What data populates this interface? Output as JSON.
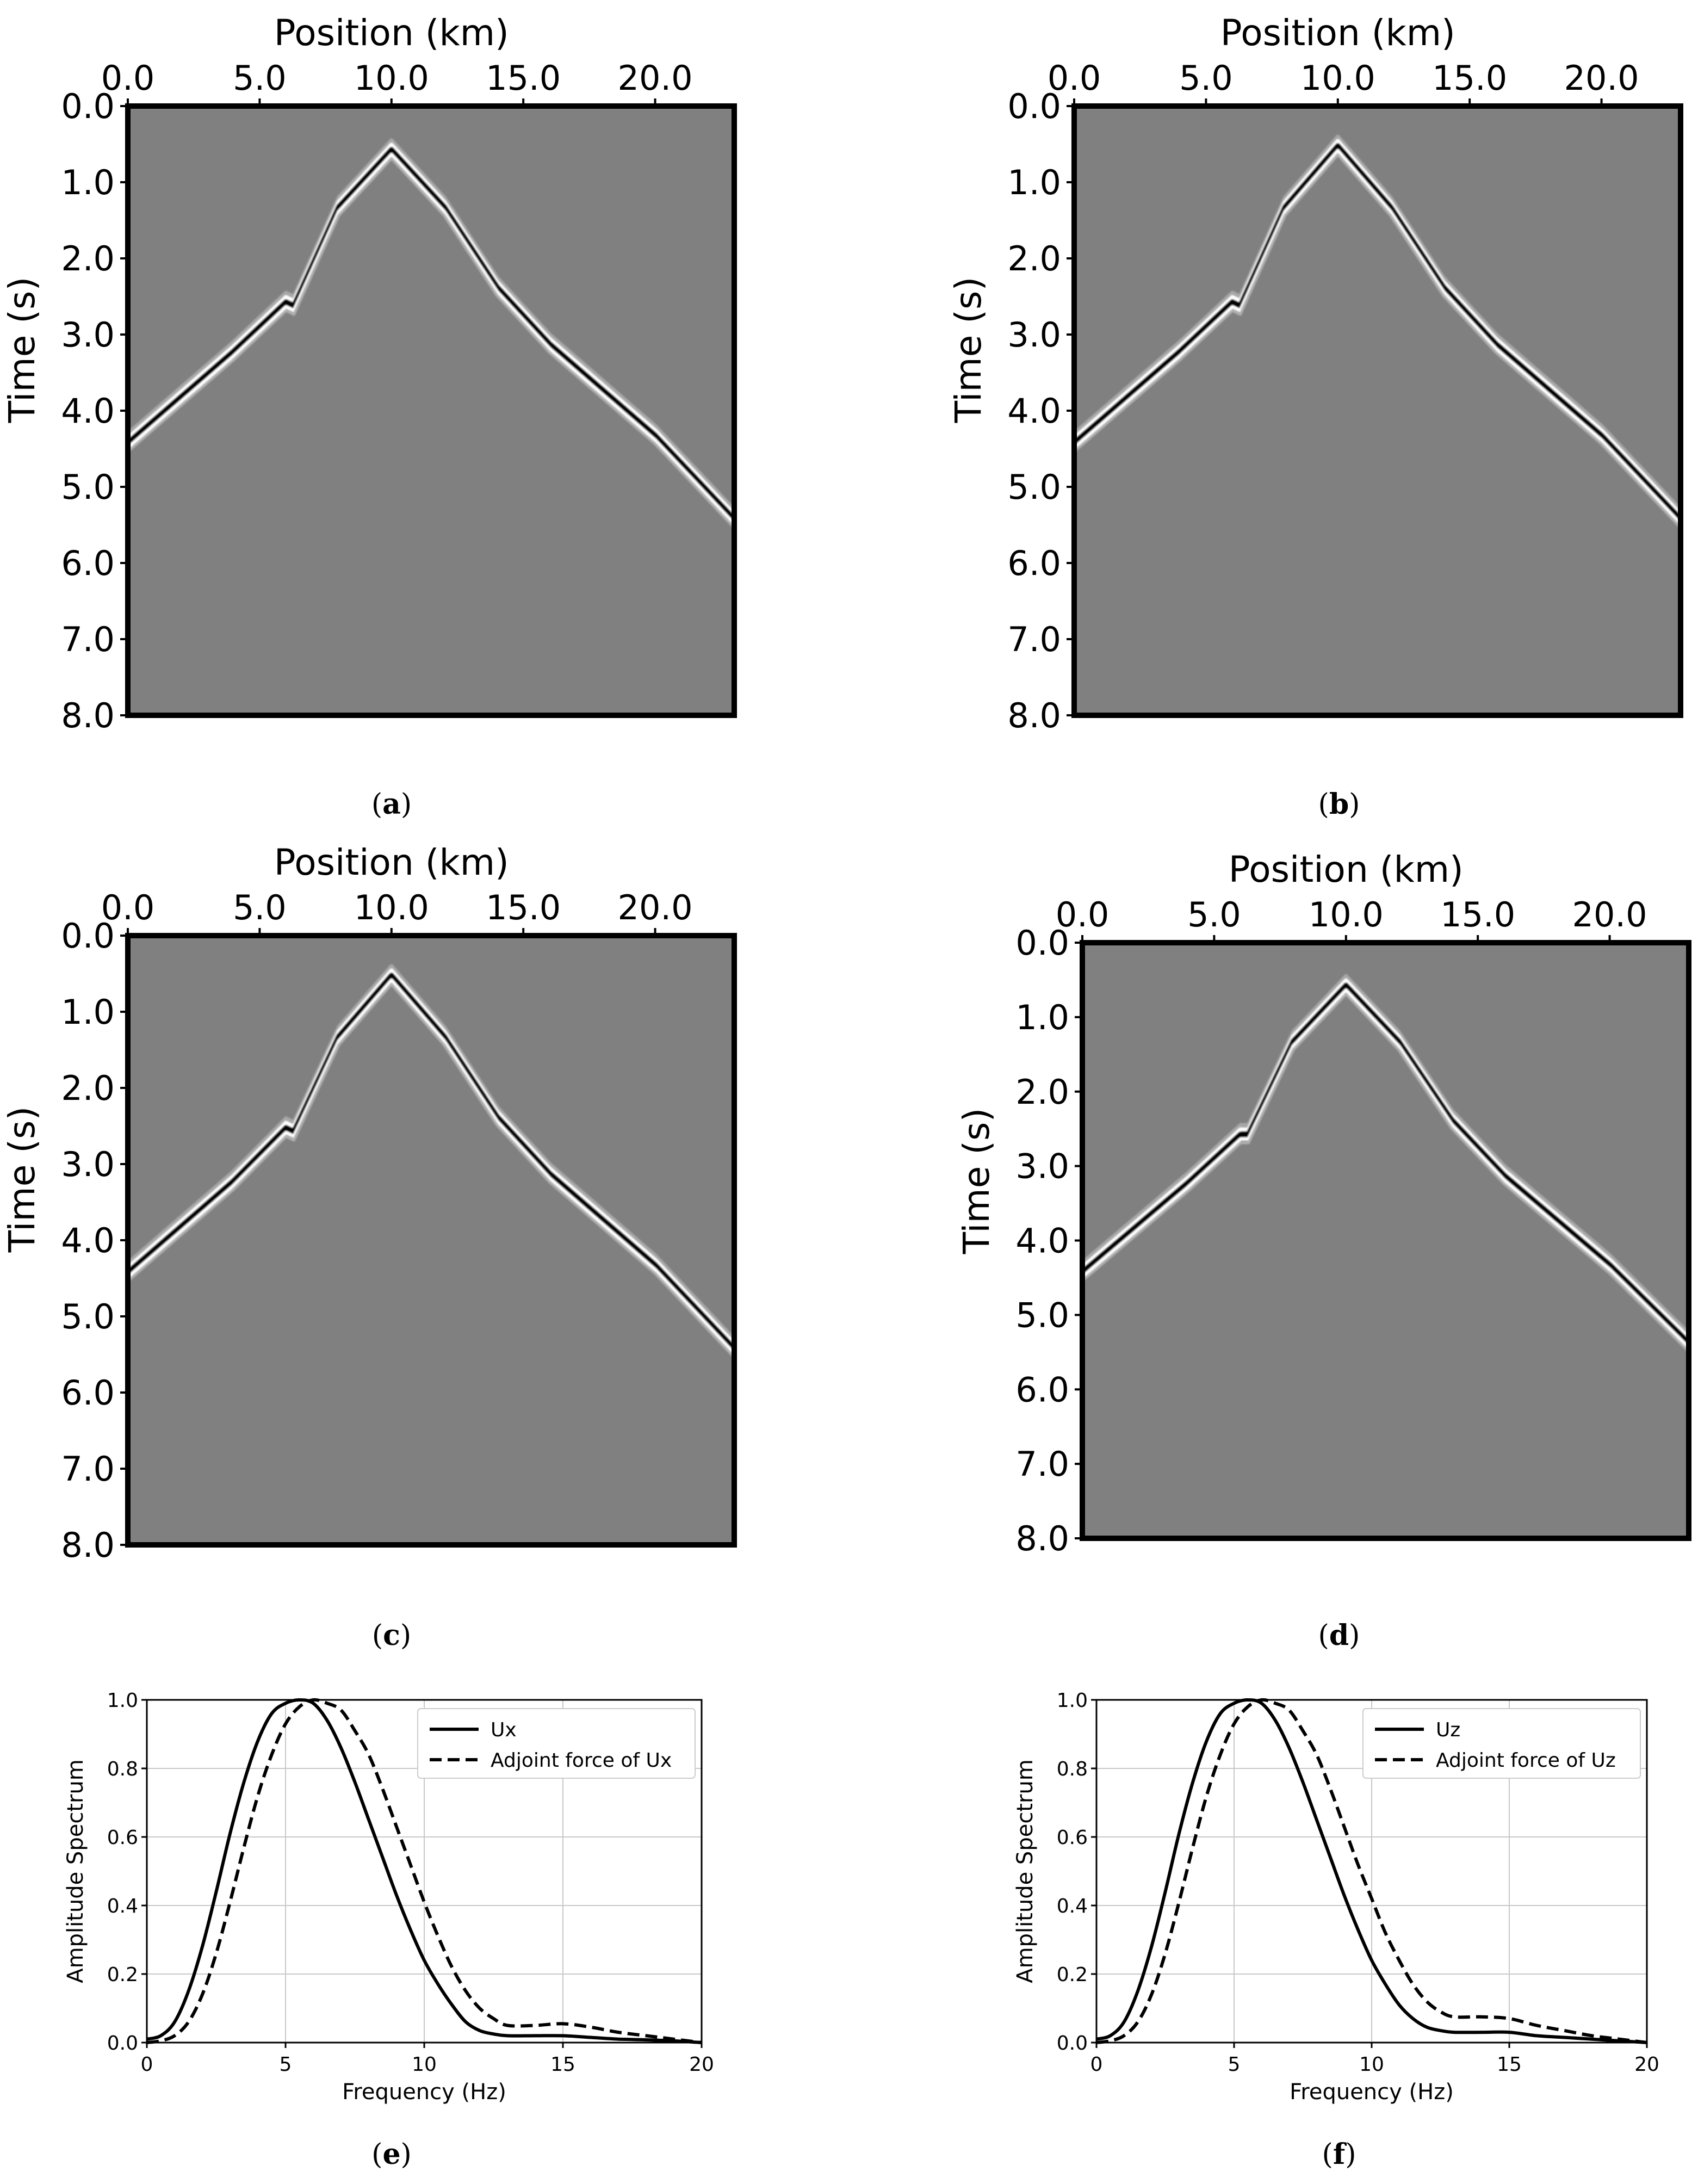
{
  "figure": {
    "captions": [
      "a",
      "b",
      "c",
      "d",
      "e",
      "f"
    ]
  },
  "chart_data": [
    {
      "panel": "a",
      "type": "heatmap",
      "xlabel": "Position (km)",
      "ylabel": "Time (s)",
      "xlim": [
        0.0,
        23.0
      ],
      "ylim": [
        8.0,
        0.0
      ],
      "xticks": [
        "0.0",
        "5.0",
        "10.0",
        "15.0",
        "20.0"
      ],
      "yticks": [
        "0.0",
        "1.0",
        "2.0",
        "3.0",
        "4.0",
        "5.0",
        "6.0",
        "7.0",
        "8.0"
      ],
      "apex": [
        10.0,
        0.6
      ],
      "arrival": {
        "x": [
          0,
          2,
          4,
          6,
          6.3,
          8,
          10,
          12,
          14,
          16,
          18,
          20,
          23
        ],
        "y": [
          4.4,
          3.8,
          3.2,
          2.55,
          2.6,
          1.3,
          0.55,
          1.3,
          2.35,
          3.1,
          3.7,
          4.3,
          5.4
        ]
      },
      "legend": "none"
    },
    {
      "panel": "b",
      "type": "heatmap",
      "xlabel": "Position (km)",
      "ylabel": "Time (s)",
      "xlim": [
        0.0,
        23.0
      ],
      "ylim": [
        8.0,
        0.0
      ],
      "xticks": [
        "0.0",
        "5.0",
        "10.0",
        "15.0",
        "20.0"
      ],
      "yticks": [
        "0.0",
        "1.0",
        "2.0",
        "3.0",
        "4.0",
        "5.0",
        "6.0",
        "7.0",
        "8.0"
      ],
      "apex": [
        10.0,
        0.55
      ],
      "arrival": {
        "x": [
          0,
          2,
          4,
          6,
          6.3,
          8,
          10,
          12,
          14,
          16,
          18,
          20,
          23
        ],
        "y": [
          4.4,
          3.8,
          3.2,
          2.55,
          2.6,
          1.3,
          0.5,
          1.3,
          2.35,
          3.1,
          3.7,
          4.3,
          5.4
        ]
      },
      "legend": "none"
    },
    {
      "panel": "c",
      "type": "heatmap",
      "xlabel": "Position (km)",
      "ylabel": "Time (s)",
      "xlim": [
        0.0,
        23.0
      ],
      "ylim": [
        8.0,
        0.0
      ],
      "xticks": [
        "0.0",
        "5.0",
        "10.0",
        "15.0",
        "20.0"
      ],
      "yticks": [
        "0.0",
        "1.0",
        "2.0",
        "3.0",
        "4.0",
        "5.0",
        "6.0",
        "7.0",
        "8.0"
      ],
      "apex": [
        10.0,
        0.5
      ],
      "arrival": {
        "x": [
          0,
          2,
          4,
          6,
          6.3,
          8,
          10,
          12,
          14,
          16,
          18,
          20,
          23
        ],
        "y": [
          4.4,
          3.8,
          3.2,
          2.5,
          2.55,
          1.3,
          0.5,
          1.3,
          2.35,
          3.1,
          3.7,
          4.3,
          5.4
        ]
      },
      "legend": "none"
    },
    {
      "panel": "d",
      "type": "heatmap",
      "xlabel": "Position (km)",
      "ylabel": "Time (s)",
      "xlim": [
        0.0,
        23.0
      ],
      "ylim": [
        8.0,
        0.0
      ],
      "xticks": [
        "0.0",
        "5.0",
        "10.0",
        "15.0",
        "20.0"
      ],
      "yticks": [
        "0.0",
        "1.0",
        "2.0",
        "3.0",
        "4.0",
        "5.0",
        "6.0",
        "7.0",
        "8.0"
      ],
      "apex": [
        10.0,
        0.6
      ],
      "arrival": {
        "x": [
          0,
          2,
          4,
          6,
          6.3,
          8,
          10,
          12,
          14,
          16,
          18,
          20,
          23
        ],
        "y": [
          4.4,
          3.8,
          3.2,
          2.55,
          2.55,
          1.3,
          0.55,
          1.3,
          2.35,
          3.1,
          3.7,
          4.3,
          5.35
        ]
      },
      "legend": "none"
    },
    {
      "panel": "e",
      "type": "line",
      "xlabel": "Frequency (Hz)",
      "ylabel": "Amplitude Spectrum",
      "xlim": [
        0,
        20
      ],
      "ylim": [
        0.0,
        1.0
      ],
      "xticks": [
        "0",
        "5",
        "10",
        "15",
        "20"
      ],
      "yticks": [
        "0.0",
        "0.2",
        "0.4",
        "0.6",
        "0.8",
        "1.0"
      ],
      "grid": true,
      "legend_position": "top-right",
      "series": [
        {
          "name": "Ux",
          "style": "solid",
          "x": [
            0,
            0.5,
            1,
            1.5,
            2,
            2.5,
            3,
            3.5,
            4,
            4.5,
            5,
            5.5,
            6,
            6.5,
            7,
            7.5,
            8,
            8.5,
            9,
            9.5,
            10,
            10.5,
            11,
            11.5,
            12,
            12.5,
            13,
            14,
            15,
            16,
            17,
            18,
            19,
            20
          ],
          "y": [
            0.01,
            0.02,
            0.06,
            0.15,
            0.28,
            0.44,
            0.61,
            0.76,
            0.88,
            0.96,
            0.99,
            1.0,
            0.99,
            0.94,
            0.86,
            0.76,
            0.65,
            0.54,
            0.43,
            0.33,
            0.24,
            0.17,
            0.11,
            0.06,
            0.035,
            0.025,
            0.02,
            0.02,
            0.02,
            0.015,
            0.01,
            0.008,
            0.005,
            0.0
          ]
        },
        {
          "name": "Adjoint force of Ux",
          "style": "dashed",
          "x": [
            0,
            0.5,
            1,
            1.5,
            2,
            2.5,
            3,
            3.5,
            4,
            4.5,
            5,
            5.5,
            6,
            6.5,
            7,
            7.5,
            8,
            8.5,
            9,
            9.5,
            10,
            10.5,
            11,
            11.5,
            12,
            12.5,
            13,
            14,
            15,
            16,
            17,
            18,
            19,
            20
          ],
          "y": [
            0.0,
            0.005,
            0.02,
            0.06,
            0.14,
            0.26,
            0.41,
            0.57,
            0.72,
            0.84,
            0.93,
            0.98,
            1.0,
            0.99,
            0.97,
            0.91,
            0.84,
            0.74,
            0.63,
            0.52,
            0.41,
            0.31,
            0.22,
            0.15,
            0.1,
            0.07,
            0.05,
            0.05,
            0.055,
            0.045,
            0.03,
            0.02,
            0.01,
            0.0
          ]
        }
      ]
    },
    {
      "panel": "f",
      "type": "line",
      "xlabel": "Frequency (Hz)",
      "ylabel": "Amplitude Spectrum",
      "xlim": [
        0,
        20
      ],
      "ylim": [
        0.0,
        1.0
      ],
      "xticks": [
        "0",
        "5",
        "10",
        "15",
        "20"
      ],
      "yticks": [
        "0.0",
        "0.2",
        "0.4",
        "0.6",
        "0.8",
        "1.0"
      ],
      "grid": true,
      "legend_position": "top-right",
      "series": [
        {
          "name": "Uz",
          "style": "solid",
          "x": [
            0,
            0.5,
            1,
            1.5,
            2,
            2.5,
            3,
            3.5,
            4,
            4.5,
            5,
            5.5,
            6,
            6.5,
            7,
            7.5,
            8,
            8.5,
            9,
            9.5,
            10,
            10.5,
            11,
            11.5,
            12,
            12.5,
            13,
            14,
            15,
            16,
            17,
            18,
            19,
            20
          ],
          "y": [
            0.01,
            0.02,
            0.06,
            0.15,
            0.28,
            0.44,
            0.61,
            0.76,
            0.88,
            0.96,
            0.99,
            1.0,
            0.99,
            0.94,
            0.86,
            0.76,
            0.65,
            0.54,
            0.43,
            0.33,
            0.24,
            0.17,
            0.11,
            0.07,
            0.045,
            0.035,
            0.03,
            0.03,
            0.03,
            0.02,
            0.015,
            0.01,
            0.005,
            0.0
          ]
        },
        {
          "name": "Adjoint force of Uz",
          "style": "dashed",
          "x": [
            0,
            0.5,
            1,
            1.5,
            2,
            2.5,
            3,
            3.5,
            4,
            4.5,
            5,
            5.5,
            6,
            6.5,
            7,
            7.5,
            8,
            8.5,
            9,
            9.5,
            10,
            10.5,
            11,
            11.5,
            12,
            12.5,
            13,
            14,
            15,
            16,
            17,
            18,
            19,
            20
          ],
          "y": [
            0.0,
            0.005,
            0.02,
            0.06,
            0.14,
            0.26,
            0.41,
            0.57,
            0.72,
            0.84,
            0.93,
            0.98,
            1.0,
            0.99,
            0.97,
            0.91,
            0.84,
            0.74,
            0.63,
            0.52,
            0.42,
            0.32,
            0.24,
            0.17,
            0.12,
            0.09,
            0.075,
            0.075,
            0.07,
            0.05,
            0.035,
            0.02,
            0.01,
            0.0
          ]
        }
      ]
    }
  ]
}
